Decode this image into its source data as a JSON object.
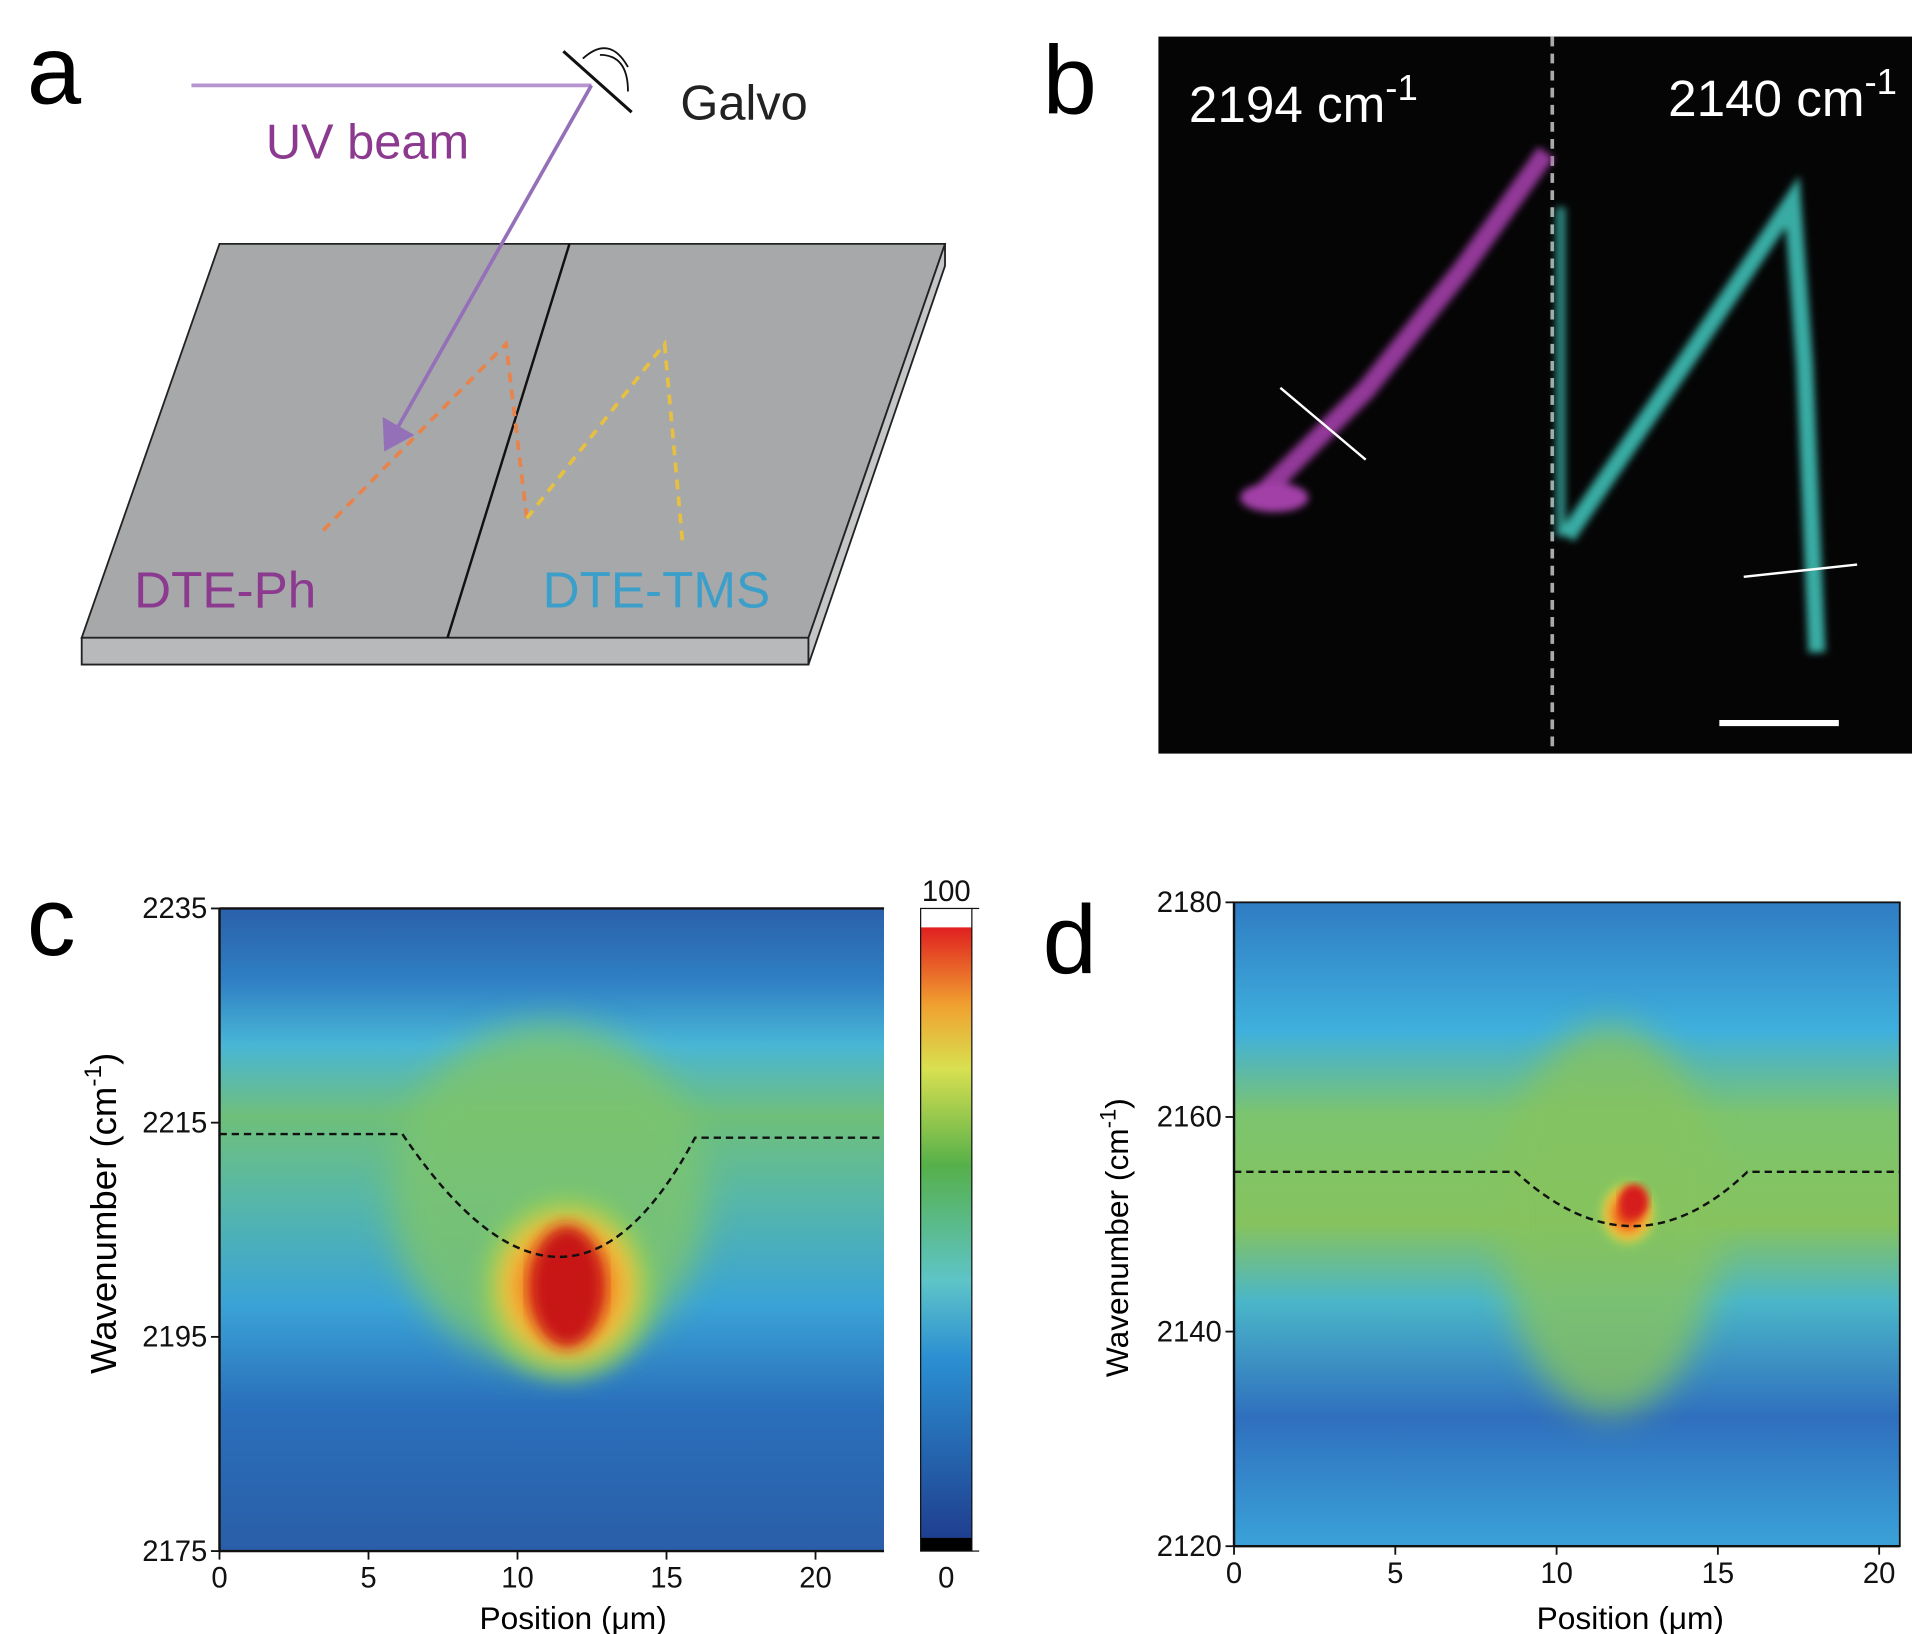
{
  "panel_a": {
    "label": "a",
    "galvo": "Galvo",
    "beam": "UV beam",
    "sample_left": "DTE-Ph",
    "sample_right": "DTE-TMS"
  },
  "panel_b": {
    "label": "b",
    "left_band": "2194 cm",
    "left_band_sup": "-1",
    "right_band": "2140 cm",
    "right_band_sup": "-1"
  },
  "panel_c": {
    "label": "c",
    "y_label": "Wavenumber (cm",
    "y_label_sup": "-1",
    "y_label_end": ")",
    "x_label": "Position (μm)",
    "xlim": [
      0,
      22.3
    ],
    "xticks": [
      0,
      5,
      10,
      15,
      20
    ],
    "ylim": [
      2175,
      2235
    ],
    "yticks": [
      2175,
      2195,
      2215,
      2235
    ],
    "colorbar_lim": [
      0,
      100
    ],
    "colorbar_ticks": [
      0,
      100
    ]
  },
  "panel_d": {
    "label": "d",
    "y_label": "Wavenumber (cm",
    "y_label_sup": "-1",
    "y_label_end": ")",
    "x_label": "Position (μm)",
    "xlim": [
      0,
      20.64
    ],
    "xticks": [
      0,
      5,
      10,
      15,
      20
    ],
    "ylim": [
      2120,
      2180
    ],
    "yticks": [
      2120,
      2140,
      2160,
      2180
    ]
  }
}
